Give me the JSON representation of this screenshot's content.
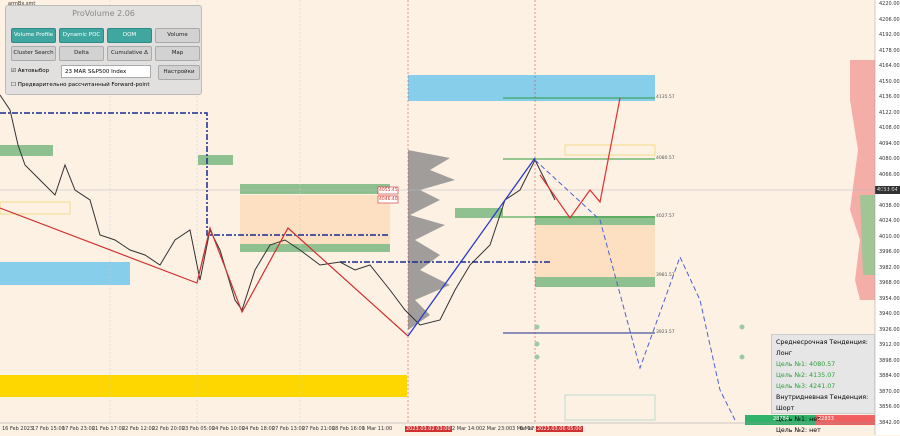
{
  "window": {
    "symbol": "armBx.smt"
  },
  "panel": {
    "title": "ProVolume 2.06",
    "buttons": [
      "Volume Profile",
      "Dynamic POC",
      "DOM",
      "Volume",
      "Cluster Search",
      "Delta",
      "Cumulative Δ",
      "Map"
    ],
    "auto_select": "Автовыбор",
    "instrument": "23 MAR S&P500 Index",
    "settings": "Настройки",
    "forward_point": "Предварительно рассчитанный Forward-point"
  },
  "price_axis": {
    "labels": [
      "4220.00",
      "4206.00",
      "4192.00",
      "4178.00",
      "4164.00",
      "4150.00",
      "4136.00",
      "4122.00",
      "4108.00",
      "4094.00",
      "4080.00",
      "4066.00",
      "4052.00",
      "4038.00",
      "4024.00",
      "4010.00",
      "3996.00",
      "3982.00",
      "3968.00",
      "3954.00",
      "3940.00",
      "3926.00",
      "3912.00",
      "3898.00",
      "3884.00",
      "3870.00",
      "3856.00",
      "3842.00"
    ],
    "current": "4053.04"
  },
  "time_axis": {
    "labels": [
      "16 Feb 2023",
      "17 Feb 15:00",
      "17 Feb 23:00",
      "21 Feb 17:00",
      "22 Feb 12:00",
      "22 Feb 20:00",
      "23 Feb 05:00",
      "24 Feb 10:00",
      "24 Feb 18:00",
      "27 Feb 13:00",
      "27 Feb 21:00",
      "28 Feb 16:00",
      "1 Mar 11:00",
      "2023.03.02 03:00",
      "2 Mar 14:00",
      "2 Mar 23:00",
      "3 Mar 17:00",
      "6 Mar",
      "2023.03.06 05:00"
    ]
  },
  "levels": [
    "4135.57",
    "4080.57",
    "4027.57",
    "3981.57",
    "3923.57"
  ],
  "markers": [
    "4055.45",
    "4046.40"
  ],
  "info": {
    "medium_term": "Среднесрочная Тенденция: Лонг",
    "target1": "Цель №1: 4080.57",
    "target2": "Цель №2: 4135.07",
    "target3": "Цель №3: 4241.07",
    "intraday": "Внутридневная Тенденция: Шорт",
    "intraday1": "Цель №1: нет",
    "intraday2": "Цель №2: нет"
  },
  "volumes": [
    "28784",
    "22833"
  ]
}
